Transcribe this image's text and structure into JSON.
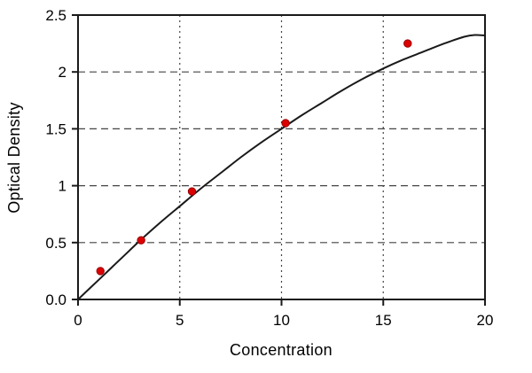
{
  "chart_data": {
    "type": "scatter",
    "title": "",
    "xlabel": "Concentration",
    "ylabel": "Optical Density",
    "xlim": [
      0,
      20
    ],
    "ylim": [
      0,
      2.5
    ],
    "x_ticks": [
      0,
      5,
      10,
      15,
      20
    ],
    "x_tick_labels": [
      "0",
      "5",
      "10",
      "15",
      "20"
    ],
    "y_ticks": [
      0,
      0.5,
      1,
      1.5,
      2,
      2.5
    ],
    "y_tick_labels": [
      "0.0",
      "0.5",
      "1",
      "1.5",
      "2",
      "2.5"
    ],
    "x_gridlines": [
      5,
      10,
      15
    ],
    "y_gridlines": [
      0.5,
      1,
      1.5,
      2
    ],
    "grid_on": true,
    "legend_position": "none",
    "point_color": "#dd0000",
    "point_edge_color": "#990000",
    "curve_color": "#1a1a1a",
    "border_color": "#1a1a1a",
    "grid_color": "#444444",
    "points": [
      [
        1.1,
        0.25
      ],
      [
        3.1,
        0.52
      ],
      [
        5.6,
        0.95
      ],
      [
        10.2,
        1.55
      ],
      [
        16.2,
        2.25
      ]
    ],
    "curve": [
      [
        0,
        0.0
      ],
      [
        1,
        0.17
      ],
      [
        2,
        0.34
      ],
      [
        3,
        0.51
      ],
      [
        4,
        0.67
      ],
      [
        5,
        0.82
      ],
      [
        6,
        0.97
      ],
      [
        7,
        1.11
      ],
      [
        8,
        1.25
      ],
      [
        9,
        1.38
      ],
      [
        10,
        1.5
      ],
      [
        11,
        1.62
      ],
      [
        12,
        1.73
      ],
      [
        13,
        1.84
      ],
      [
        14,
        1.94
      ],
      [
        15,
        2.03
      ],
      [
        16,
        2.11
      ],
      [
        17,
        2.18
      ],
      [
        18,
        2.25
      ],
      [
        19,
        2.31
      ],
      [
        19.5,
        2.325
      ],
      [
        20,
        2.32
      ]
    ]
  }
}
